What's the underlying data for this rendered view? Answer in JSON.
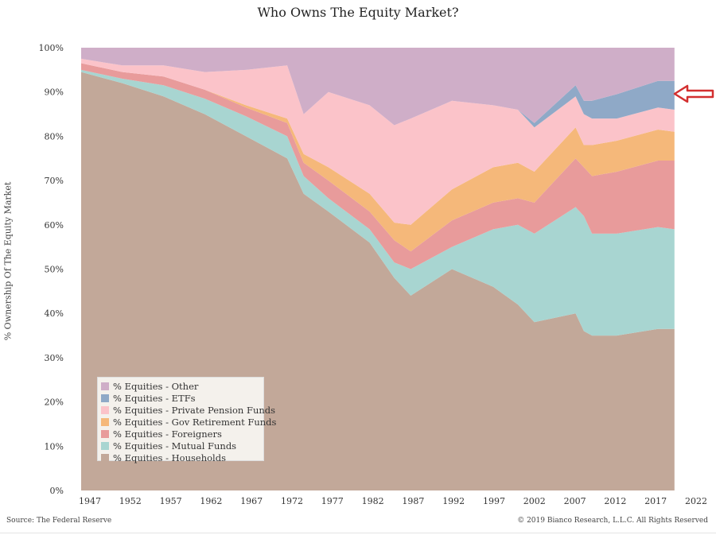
{
  "chart_data": {
    "type": "area",
    "stacked": true,
    "title": "Who Owns The Equity Market?",
    "ylabel": "% Ownership Of The Equity Market",
    "xlabel": "",
    "x": [
      1947,
      1952,
      1957,
      1962,
      1967,
      1972,
      1974,
      1977,
      1982,
      1985,
      1987,
      1992,
      1997,
      2000,
      2002,
      2007,
      2008,
      2009,
      2012,
      2017,
      2019
    ],
    "x_ticks": [
      "1947",
      "1952",
      "1957",
      "1962",
      "1967",
      "1972",
      "1977",
      "1982",
      "1987",
      "1992",
      "1997",
      "2002",
      "2007",
      "2012",
      "2017",
      "2022"
    ],
    "xlim": [
      1947,
      2022
    ],
    "y_ticks": [
      "0%",
      "10%",
      "20%",
      "30%",
      "40%",
      "50%",
      "60%",
      "70%",
      "80%",
      "90%",
      "100%"
    ],
    "ylim": [
      0,
      100
    ],
    "legend_position": "bottom-left",
    "series": [
      {
        "name": "% Equities - Households",
        "color": "#c2a899",
        "values": [
          94.5,
          92,
          89,
          85,
          80,
          75,
          67,
          63,
          56,
          48,
          44,
          50,
          46,
          42,
          38,
          40,
          36,
          35,
          35,
          36.5,
          36.5
        ]
      },
      {
        "name": "% Equities - Mutual Funds",
        "color": "#a8d5d1",
        "values": [
          0.5,
          1,
          2.5,
          3.5,
          4.5,
          5,
          4,
          3,
          3,
          3.5,
          6,
          5,
          13,
          18,
          20,
          24,
          26,
          23,
          23,
          23,
          22.5
        ]
      },
      {
        "name": "% Equities - Foreigners",
        "color": "#e89b9b",
        "values": [
          1.5,
          1.5,
          2,
          2,
          2,
          3,
          3,
          4,
          4,
          5,
          4,
          6,
          6,
          6,
          7,
          11,
          11,
          13,
          14,
          15,
          15.5
        ]
      },
      {
        "name": "% Equities - Gov Retirement Funds",
        "color": "#f5b87a",
        "values": [
          0,
          0,
          0,
          0,
          0.5,
          1,
          2,
          3,
          4,
          4,
          6,
          7,
          8,
          8,
          7,
          7,
          5,
          7,
          7,
          7,
          6.5
        ]
      },
      {
        "name": "% Equities - Private Pension Funds",
        "color": "#fbc3c9",
        "values": [
          1,
          1.5,
          2.5,
          4,
          8,
          12,
          9,
          17,
          20,
          22,
          24,
          20,
          14,
          12,
          10,
          7,
          7,
          6,
          5,
          5,
          5
        ]
      },
      {
        "name": "% Equities - ETFs",
        "color": "#8fa9c7",
        "values": [
          0,
          0,
          0,
          0,
          0,
          0,
          0,
          0,
          0,
          0,
          0,
          0,
          0,
          0,
          1,
          2.5,
          3,
          4,
          5.5,
          6,
          6.5
        ]
      },
      {
        "name": "% Equities - Other",
        "color": "#cfaec8",
        "values": [
          2.5,
          4,
          4,
          5.5,
          5,
          4,
          15,
          10,
          13,
          17.5,
          16,
          12,
          13,
          14,
          17,
          8.5,
          12,
          12,
          10.5,
          7.5,
          7.5
        ]
      }
    ]
  },
  "footer": {
    "source": "Source: The Federal Reserve",
    "copyright": "© 2019 Bianco Research, L.L.C. All Rights Reserved"
  },
  "annotation": {
    "arrow_color": "#d32f2f",
    "arrow_icon": "arrow-left-icon"
  }
}
